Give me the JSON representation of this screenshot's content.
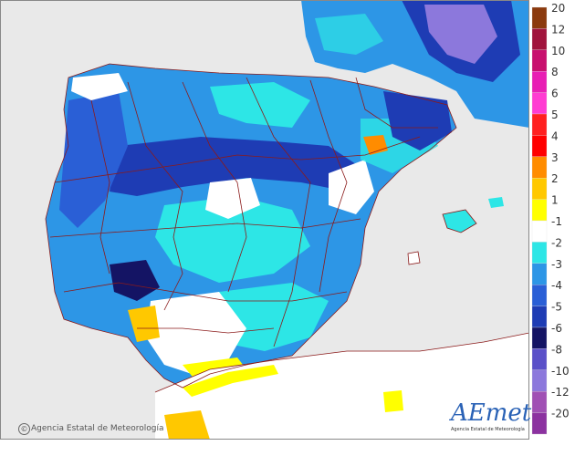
{
  "credit": "Agencia Estatal de Meteorología",
  "logo": {
    "text": "AEmet",
    "subtitle": "Agencia Estatal de Meteorología"
  },
  "legend": {
    "levels": [
      {
        "label": "20",
        "color": "#8b3a0e"
      },
      {
        "label": "12",
        "color": "#a0143c"
      },
      {
        "label": "10",
        "color": "#c8106e"
      },
      {
        "label": "8",
        "color": "#e81eb4"
      },
      {
        "label": "6",
        "color": "#ff3cd2"
      },
      {
        "label": "5",
        "color": "#ff2020"
      },
      {
        "label": "4",
        "color": "#ff0000"
      },
      {
        "label": "3",
        "color": "#ff8c00"
      },
      {
        "label": "2",
        "color": "#ffc800"
      },
      {
        "label": "1",
        "color": "#ffff00"
      },
      {
        "label": "-1",
        "color": "#ffffff"
      },
      {
        "label": "-2",
        "color": "#2de6e6"
      },
      {
        "label": "-3",
        "color": "#2d96e6"
      },
      {
        "label": "-4",
        "color": "#2a5fd6"
      },
      {
        "label": "-5",
        "color": "#1e3cb4"
      },
      {
        "label": "-6",
        "color": "#141464"
      },
      {
        "label": "-8",
        "color": "#5a50c8"
      },
      {
        "label": "-10",
        "color": "#8c78dc"
      },
      {
        "label": "-12",
        "color": "#a050b4"
      },
      {
        "label": "-20",
        "color": "#8c32a0"
      }
    ]
  },
  "colors": {
    "sea": "#e9e9e9",
    "land_outside": "#ececec",
    "border": "#8b1a1a"
  }
}
